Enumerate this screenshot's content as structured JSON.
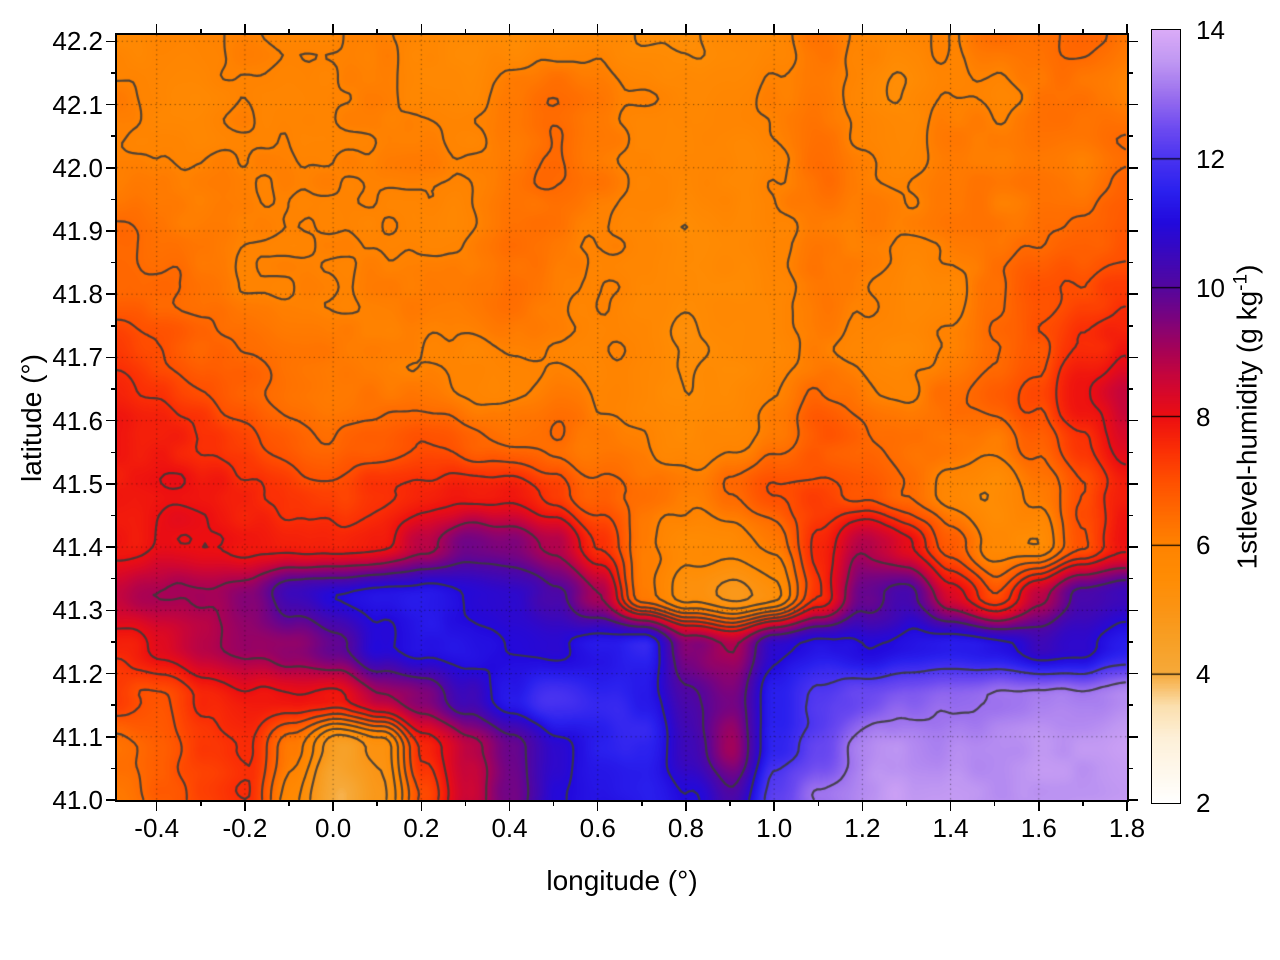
{
  "figure": {
    "background": "#ffffff",
    "xlabel": "longitude (°)",
    "ylabel": "latitude (°)",
    "colorbar_label": {
      "prefix": "1stlevel-humidity (g kg",
      "sup": "-1",
      "suffix": ")"
    }
  },
  "chart_data": {
    "type": "heatmap",
    "title": "",
    "xlabel": "longitude (°)",
    "ylabel": "latitude (°)",
    "colorbar_label": "1stlevel-humidity (g kg^-1)",
    "xlim": [
      -0.49,
      1.8
    ],
    "ylim": [
      41.0,
      42.21
    ],
    "xticks": [
      -0.4,
      -0.2,
      0.0,
      0.2,
      0.4,
      0.6,
      0.8,
      1.0,
      1.2,
      1.4,
      1.6,
      1.8
    ],
    "xtick_labels": [
      "-0.4",
      "-0.2",
      "0.0",
      "0.2",
      "0.4",
      "0.6",
      "0.8",
      "1.0",
      "1.2",
      "1.4",
      "1.6",
      "1.8"
    ],
    "x_minor_ticks": [
      -0.3,
      -0.1,
      0.1,
      0.3,
      0.5,
      0.7,
      0.9,
      1.1,
      1.3,
      1.5,
      1.7
    ],
    "yticks": [
      41.0,
      41.1,
      41.2,
      41.3,
      41.4,
      41.5,
      41.6,
      41.7,
      41.8,
      41.9,
      42.0,
      42.1,
      42.2
    ],
    "ytick_labels": [
      "41.0",
      "41.1",
      "41.2",
      "41.3",
      "41.4",
      "41.5",
      "41.6",
      "41.7",
      "41.8",
      "41.9",
      "42.0",
      "42.1",
      "42.2"
    ],
    "y_minor_ticks": [
      41.05,
      41.15,
      41.25,
      41.35,
      41.45,
      41.55,
      41.65,
      41.75,
      41.85,
      41.95,
      42.05,
      42.15
    ],
    "grid_on": true,
    "legend_position": "colorbar-right",
    "colorbar": {
      "min": 2,
      "max": 14,
      "ticks": [
        2,
        4,
        6,
        8,
        10,
        12,
        14
      ],
      "tick_labels": [
        "2",
        "4",
        "6",
        "8",
        "10",
        "12",
        "14"
      ]
    },
    "palette": [
      [
        2.0,
        "#ffffff"
      ],
      [
        3.0,
        "#fdf0d8"
      ],
      [
        3.5,
        "#fbdfae"
      ],
      [
        4.0,
        "#f6a93a"
      ],
      [
        4.5,
        "#f7a026"
      ],
      [
        5.0,
        "#fb9414"
      ],
      [
        5.5,
        "#ff8c03"
      ],
      [
        6.0,
        "#ff8300"
      ],
      [
        6.5,
        "#ff6a00"
      ],
      [
        7.0,
        "#ff4f00"
      ],
      [
        7.5,
        "#fa2d05"
      ],
      [
        8.0,
        "#ec0e11"
      ],
      [
        8.5,
        "#cf0633"
      ],
      [
        9.0,
        "#a90254"
      ],
      [
        9.5,
        "#7d037c"
      ],
      [
        10.0,
        "#54069e"
      ],
      [
        10.5,
        "#3b08bb"
      ],
      [
        11.0,
        "#2209dc"
      ],
      [
        11.5,
        "#2a20ee"
      ],
      [
        12.0,
        "#4933f0"
      ],
      [
        12.5,
        "#6f4cf0"
      ],
      [
        13.0,
        "#9b70ee"
      ],
      [
        13.5,
        "#bf97f2"
      ],
      [
        14.0,
        "#daabf7"
      ]
    ],
    "grid_lon": [
      -0.49,
      -0.39,
      -0.29,
      -0.19,
      -0.09,
      0.01,
      0.11,
      0.21,
      0.31,
      0.41,
      0.51,
      0.61,
      0.7,
      0.8,
      0.9,
      1.0,
      1.1,
      1.2,
      1.3,
      1.4,
      1.5,
      1.6,
      1.7,
      1.8
    ],
    "grid_lat": [
      42.21,
      42.13,
      42.05,
      41.97,
      41.89,
      41.81,
      41.73,
      41.65,
      41.56,
      41.48,
      41.4,
      41.32,
      41.24,
      41.16,
      41.08,
      41.0
    ],
    "values": [
      [
        6.0,
        6.0,
        5.9,
        5.9,
        5.8,
        5.8,
        5.9,
        5.7,
        5.6,
        5.5,
        5.8,
        5.9,
        5.6,
        5.6,
        5.9,
        6.0,
        6.2,
        6.0,
        5.9,
        6.1,
        6.3,
        6.2,
        6.4,
        6.3
      ],
      [
        6.0,
        5.9,
        5.9,
        5.8,
        5.8,
        5.9,
        5.9,
        5.8,
        5.6,
        5.9,
        6.2,
        6.0,
        5.8,
        5.5,
        5.7,
        5.9,
        6.1,
        5.9,
        5.6,
        5.8,
        6.0,
        6.3,
        6.1,
        6.2
      ],
      [
        6.1,
        6.0,
        5.9,
        5.9,
        5.8,
        5.9,
        6.0,
        5.9,
        5.8,
        6.1,
        6.4,
        6.1,
        5.8,
        5.6,
        5.8,
        6.0,
        6.2,
        6.0,
        5.8,
        6.0,
        6.2,
        6.4,
        6.3,
        6.5
      ],
      [
        6.3,
        6.2,
        6.0,
        5.9,
        5.9,
        6.0,
        6.1,
        6.0,
        5.9,
        6.2,
        6.5,
        6.2,
        5.9,
        5.7,
        5.9,
        6.1,
        6.3,
        6.1,
        5.9,
        6.1,
        6.3,
        6.5,
        6.4,
        6.6
      ],
      [
        6.6,
        6.4,
        6.2,
        6.0,
        6.0,
        6.1,
        6.2,
        6.1,
        6.0,
        6.3,
        6.4,
        6.1,
        5.8,
        5.5,
        5.6,
        5.9,
        6.2,
        6.0,
        5.8,
        6.0,
        6.4,
        6.6,
        6.6,
        6.8
      ],
      [
        6.8,
        6.6,
        6.4,
        6.2,
        6.1,
        6.1,
        6.2,
        6.1,
        6.0,
        6.2,
        6.3,
        6.0,
        5.7,
        5.4,
        5.6,
        5.8,
        6.1,
        5.9,
        5.7,
        5.9,
        6.3,
        6.7,
        6.9,
        7.2
      ],
      [
        7.2,
        7.0,
        6.7,
        6.4,
        6.2,
        6.2,
        6.3,
        6.2,
        6.1,
        6.3,
        6.2,
        5.9,
        5.6,
        5.4,
        5.7,
        5.9,
        6.2,
        6.0,
        5.8,
        6.0,
        6.4,
        6.8,
        7.3,
        7.8
      ],
      [
        7.5,
        7.3,
        7.0,
        6.7,
        6.4,
        6.3,
        6.3,
        6.2,
        6.0,
        6.1,
        6.1,
        5.8,
        5.6,
        5.5,
        5.8,
        6.1,
        6.4,
        6.2,
        6.0,
        6.3,
        6.6,
        7.0,
        7.8,
        8.6
      ],
      [
        7.8,
        7.6,
        7.4,
        7.1,
        6.8,
        6.6,
        6.6,
        6.8,
        6.6,
        6.5,
        6.3,
        6.0,
        5.8,
        5.7,
        6.0,
        6.3,
        6.7,
        6.6,
        6.4,
        6.2,
        5.9,
        6.6,
        7.4,
        8.3
      ],
      [
        8.0,
        7.9,
        7.8,
        7.6,
        7.3,
        7.1,
        7.2,
        7.4,
        7.6,
        7.8,
        7.4,
        6.6,
        6.2,
        6.1,
        6.4,
        7.0,
        7.3,
        7.0,
        6.6,
        5.9,
        5.5,
        6.2,
        7.2,
        7.9
      ],
      [
        8.0,
        8.0,
        7.9,
        7.8,
        7.6,
        7.5,
        7.8,
        8.6,
        9.6,
        9.4,
        8.9,
        7.4,
        6.1,
        5.7,
        5.8,
        6.2,
        7.6,
        8.8,
        8.0,
        7.0,
        5.8,
        5.6,
        6.8,
        8.0
      ],
      [
        8.9,
        9.1,
        9.0,
        9.4,
        10.6,
        11.0,
        11.2,
        11.3,
        11.0,
        10.9,
        10.2,
        9.0,
        6.2,
        5.3,
        4.9,
        5.5,
        7.4,
        9.9,
        10.4,
        8.2,
        7.0,
        8.8,
        10.2,
        10.6
      ],
      [
        7.8,
        8.2,
        8.8,
        9.2,
        9.3,
        9.8,
        10.8,
        11.3,
        11.4,
        11.2,
        11.0,
        11.4,
        11.9,
        9.6,
        9.0,
        10.8,
        11.2,
        11.0,
        11.3,
        11.4,
        11.2,
        10.6,
        10.9,
        11.5
      ],
      [
        7.4,
        7.0,
        7.6,
        7.9,
        7.8,
        7.6,
        8.8,
        9.4,
        10.6,
        11.6,
        12.2,
        11.8,
        11.5,
        10.2,
        9.6,
        11.4,
        12.0,
        12.4,
        12.7,
        13.0,
        13.1,
        13.2,
        13.2,
        13.3
      ],
      [
        6.6,
        6.9,
        7.4,
        7.6,
        6.0,
        4.4,
        5.2,
        7.6,
        8.8,
        10.0,
        10.8,
        11.3,
        11.5,
        10.4,
        9.2,
        11.8,
        12.6,
        13.1,
        13.3,
        13.4,
        13.4,
        13.5,
        13.4,
        13.5
      ],
      [
        6.3,
        6.8,
        7.2,
        7.4,
        5.6,
        3.9,
        4.8,
        7.0,
        8.6,
        9.8,
        11.0,
        11.4,
        11.6,
        11.0,
        10.2,
        12.4,
        13.2,
        13.4,
        13.5,
        13.5,
        13.5,
        13.6,
        13.5,
        13.6
      ]
    ],
    "contour_levels": [
      5,
      5.5,
      6,
      6.5,
      7,
      7.5,
      8,
      9,
      10,
      11,
      12,
      13
    ],
    "contour_color": "#3a3a3a"
  }
}
